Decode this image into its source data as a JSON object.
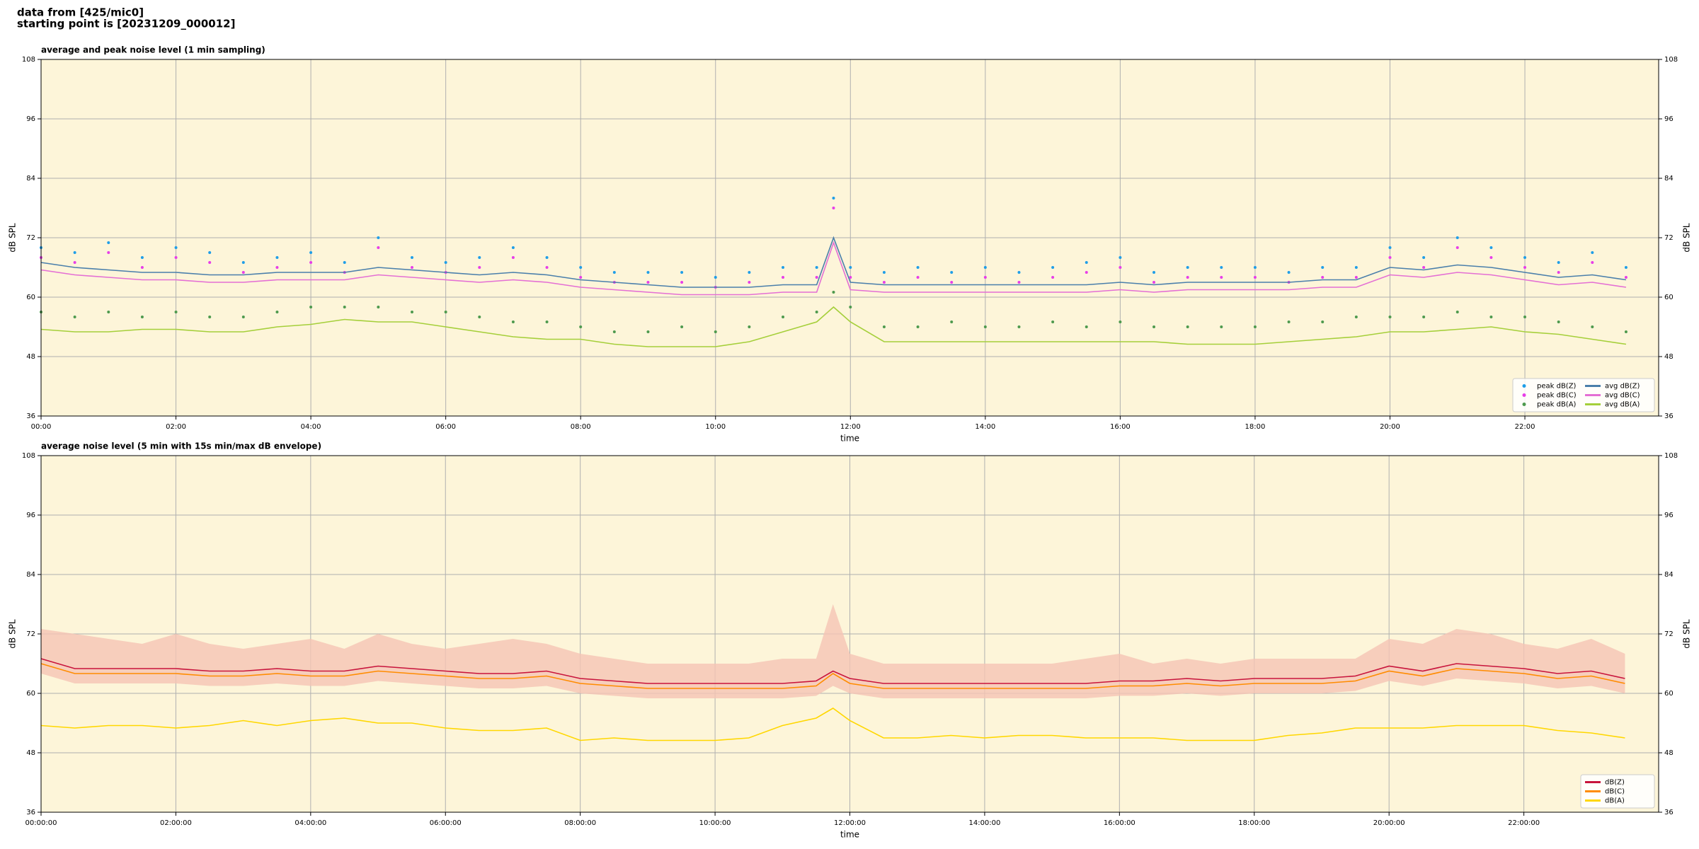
{
  "title_lines": [
    "data from [425/mic0]",
    "starting point is [20231209_000012]"
  ],
  "chart_data": [
    {
      "type": "line",
      "title": "average and peak noise level (1 min sampling)",
      "xlabel": "time",
      "ylabel": "dB SPL",
      "background": "#fdf5d9",
      "grid": true,
      "legend": "lower right",
      "x": [
        "00:00",
        "00:30",
        "01:00",
        "01:30",
        "02:00",
        "02:30",
        "03:00",
        "03:30",
        "04:00",
        "04:30",
        "05:00",
        "05:30",
        "06:00",
        "06:30",
        "07:00",
        "07:30",
        "08:00",
        "08:30",
        "09:00",
        "09:30",
        "10:00",
        "10:30",
        "11:00",
        "11:30",
        "11:45",
        "12:00",
        "12:30",
        "13:00",
        "13:30",
        "14:00",
        "14:30",
        "15:00",
        "15:30",
        "16:00",
        "16:30",
        "17:00",
        "17:30",
        "18:00",
        "18:30",
        "19:00",
        "19:30",
        "20:00",
        "20:30",
        "21:00",
        "21:30",
        "22:00",
        "22:30",
        "23:00",
        "23:30"
      ],
      "xlim": [
        "00:00",
        "23:59"
      ],
      "xticks": [
        "00:00",
        "02:00",
        "04:00",
        "06:00",
        "08:00",
        "10:00",
        "12:00",
        "14:00",
        "16:00",
        "18:00",
        "20:00",
        "22:00"
      ],
      "ylim": [
        36,
        108
      ],
      "yticks": [
        36,
        48,
        60,
        72,
        84,
        96,
        108
      ],
      "series": [
        {
          "name": "peak dB(Z)",
          "style": "markers",
          "color": "#1f9ee8",
          "values": [
            70,
            69,
            71,
            68,
            70,
            69,
            67,
            68,
            69,
            67,
            72,
            68,
            67,
            68,
            70,
            68,
            66,
            65,
            65,
            65,
            64,
            65,
            66,
            66,
            80,
            66,
            65,
            66,
            65,
            66,
            65,
            66,
            67,
            68,
            65,
            66,
            66,
            66,
            65,
            66,
            66,
            70,
            68,
            72,
            70,
            68,
            67,
            69,
            66
          ]
        },
        {
          "name": "peak dB(C)",
          "style": "markers",
          "color": "#e83ee8",
          "values": [
            68,
            67,
            69,
            66,
            68,
            67,
            65,
            66,
            67,
            65,
            70,
            66,
            65,
            66,
            68,
            66,
            64,
            63,
            63,
            63,
            62,
            63,
            64,
            64,
            78,
            64,
            63,
            64,
            63,
            64,
            63,
            64,
            65,
            66,
            63,
            64,
            64,
            64,
            63,
            64,
            64,
            68,
            66,
            70,
            68,
            66,
            65,
            67,
            64
          ]
        },
        {
          "name": "peak dB(A)",
          "style": "markers",
          "color": "#4e9a4e",
          "values": [
            57,
            56,
            57,
            56,
            57,
            56,
            56,
            57,
            58,
            58,
            58,
            57,
            57,
            56,
            55,
            55,
            54,
            53,
            53,
            54,
            53,
            54,
            56,
            57,
            61,
            58,
            54,
            54,
            55,
            54,
            54,
            55,
            54,
            55,
            54,
            54,
            54,
            54,
            55,
            55,
            56,
            56,
            56,
            57,
            56,
            56,
            55,
            54,
            53
          ]
        },
        {
          "name": "avg dB(Z)",
          "style": "line",
          "color": "#4a7fab",
          "values": [
            67,
            66,
            65.5,
            65,
            65,
            64.5,
            64.5,
            65,
            65,
            65,
            66,
            65.5,
            65,
            64.5,
            65,
            64.5,
            63.5,
            63,
            62.5,
            62,
            62,
            62,
            62.5,
            62.5,
            72,
            63,
            62.5,
            62.5,
            62.5,
            62.5,
            62.5,
            62.5,
            62.5,
            63,
            62.5,
            63,
            63,
            63,
            63,
            63.5,
            63.5,
            66,
            65.5,
            66.5,
            66,
            65,
            64,
            64.5,
            63.5
          ]
        },
        {
          "name": "avg dB(C)",
          "style": "line",
          "color": "#e46fd4",
          "values": [
            65.5,
            64.5,
            64,
            63.5,
            63.5,
            63,
            63,
            63.5,
            63.5,
            63.5,
            64.5,
            64,
            63.5,
            63,
            63.5,
            63,
            62,
            61.5,
            61,
            60.5,
            60.5,
            60.5,
            61,
            61,
            71,
            61.5,
            61,
            61,
            61,
            61,
            61,
            61,
            61,
            61.5,
            61,
            61.5,
            61.5,
            61.5,
            61.5,
            62,
            62,
            64.5,
            64,
            65,
            64.5,
            63.5,
            62.5,
            63,
            62
          ]
        },
        {
          "name": "avg dB(A)",
          "style": "line",
          "color": "#a5cf3a",
          "values": [
            53.5,
            53,
            53,
            53.5,
            53.5,
            53,
            53,
            54,
            54.5,
            55.5,
            55,
            55,
            54,
            53,
            52,
            51.5,
            51.5,
            50.5,
            50,
            50,
            50,
            51,
            53,
            55,
            58,
            55,
            51,
            51,
            51,
            51,
            51,
            51,
            51,
            51,
            51,
            50.5,
            50.5,
            50.5,
            51,
            51.5,
            52,
            53,
            53,
            53.5,
            54,
            53,
            52.5,
            51.5,
            50.5
          ]
        }
      ]
    },
    {
      "type": "line",
      "title": "average noise level (5 min with 15s min/max dB envelope)",
      "xlabel": "time",
      "ylabel": "dB SPL",
      "background": "#fdf5d9",
      "grid": true,
      "legend": "lower right",
      "x": [
        "00:00:00",
        "00:30:00",
        "01:00:00",
        "01:30:00",
        "02:00:00",
        "02:30:00",
        "03:00:00",
        "03:30:00",
        "04:00:00",
        "04:30:00",
        "05:00:00",
        "05:30:00",
        "06:00:00",
        "06:30:00",
        "07:00:00",
        "07:30:00",
        "08:00:00",
        "08:30:00",
        "09:00:00",
        "09:30:00",
        "10:00:00",
        "10:30:00",
        "11:00:00",
        "11:30:00",
        "11:45:00",
        "12:00:00",
        "12:30:00",
        "13:00:00",
        "13:30:00",
        "14:00:00",
        "14:30:00",
        "15:00:00",
        "15:30:00",
        "16:00:00",
        "16:30:00",
        "17:00:00",
        "17:30:00",
        "18:00:00",
        "18:30:00",
        "19:00:00",
        "19:30:00",
        "20:00:00",
        "20:30:00",
        "21:00:00",
        "21:30:00",
        "22:00:00",
        "22:30:00",
        "23:00:00",
        "23:30:00"
      ],
      "xlim": [
        "00:00:00",
        "23:59:59"
      ],
      "xticks": [
        "00:00:00",
        "02:00:00",
        "04:00:00",
        "06:00:00",
        "08:00:00",
        "10:00:00",
        "12:00:00",
        "14:00:00",
        "16:00:00",
        "18:00:00",
        "20:00:00",
        "22:00:00"
      ],
      "ylim": [
        36,
        108
      ],
      "yticks": [
        36,
        48,
        60,
        72,
        84,
        96,
        108
      ],
      "band": {
        "color": "#f5c4b4",
        "low": [
          64,
          62,
          62,
          62,
          62,
          61.5,
          61.5,
          62,
          61.5,
          61.5,
          62.5,
          62,
          61.5,
          61,
          61,
          61.5,
          60,
          59.5,
          59,
          59,
          59,
          59,
          59,
          59.5,
          61.5,
          60,
          59,
          59,
          59,
          59,
          59,
          59,
          59,
          59.5,
          59.5,
          60,
          59.5,
          60,
          60,
          60,
          60.5,
          62.5,
          61.5,
          63,
          62.5,
          62,
          61,
          61.5,
          60
        ],
        "high": [
          73,
          72,
          71,
          70,
          72,
          70,
          69,
          70,
          71,
          69,
          72,
          70,
          69,
          70,
          71,
          70,
          68,
          67,
          66,
          66,
          66,
          66,
          67,
          67,
          78,
          68,
          66,
          66,
          66,
          66,
          66,
          66,
          67,
          68,
          66,
          67,
          66,
          67,
          67,
          67,
          67,
          71,
          70,
          73,
          72,
          70,
          69,
          71,
          68
        ]
      },
      "series": [
        {
          "name": "dB(Z)",
          "style": "line",
          "color": "#c8143c",
          "values": [
            67,
            65,
            65,
            65,
            65,
            64.5,
            64.5,
            65,
            64.5,
            64.5,
            65.5,
            65,
            64.5,
            64,
            64,
            64.5,
            63,
            62.5,
            62,
            62,
            62,
            62,
            62,
            62.5,
            64.5,
            63,
            62,
            62,
            62,
            62,
            62,
            62,
            62,
            62.5,
            62.5,
            63,
            62.5,
            63,
            63,
            63,
            63.5,
            65.5,
            64.5,
            66,
            65.5,
            65,
            64,
            64.5,
            63
          ]
        },
        {
          "name": "dB(C)",
          "style": "line",
          "color": "#ff8c00",
          "values": [
            66,
            64,
            64,
            64,
            64,
            63.5,
            63.5,
            64,
            63.5,
            63.5,
            64.5,
            64,
            63.5,
            63,
            63,
            63.5,
            62,
            61.5,
            61,
            61,
            61,
            61,
            61,
            61.5,
            64,
            62,
            61,
            61,
            61,
            61,
            61,
            61,
            61,
            61.5,
            61.5,
            62,
            61.5,
            62,
            62,
            62,
            62.5,
            64.5,
            63.5,
            65,
            64.5,
            64,
            63,
            63.5,
            62
          ]
        },
        {
          "name": "dB(A)",
          "style": "line",
          "color": "#ffd700",
          "values": [
            53.5,
            53,
            53.5,
            53.5,
            53,
            53.5,
            54.5,
            53.5,
            54.5,
            55,
            54,
            54,
            53,
            52.5,
            52.5,
            53,
            50.5,
            51,
            50.5,
            50.5,
            50.5,
            51,
            53.5,
            55,
            57,
            54.5,
            51,
            51,
            51.5,
            51,
            51.5,
            51.5,
            51,
            51,
            51,
            50.5,
            50.5,
            50.5,
            51.5,
            52,
            53,
            53,
            53,
            53.5,
            53.5,
            53.5,
            52.5,
            52,
            51
          ]
        }
      ]
    }
  ]
}
